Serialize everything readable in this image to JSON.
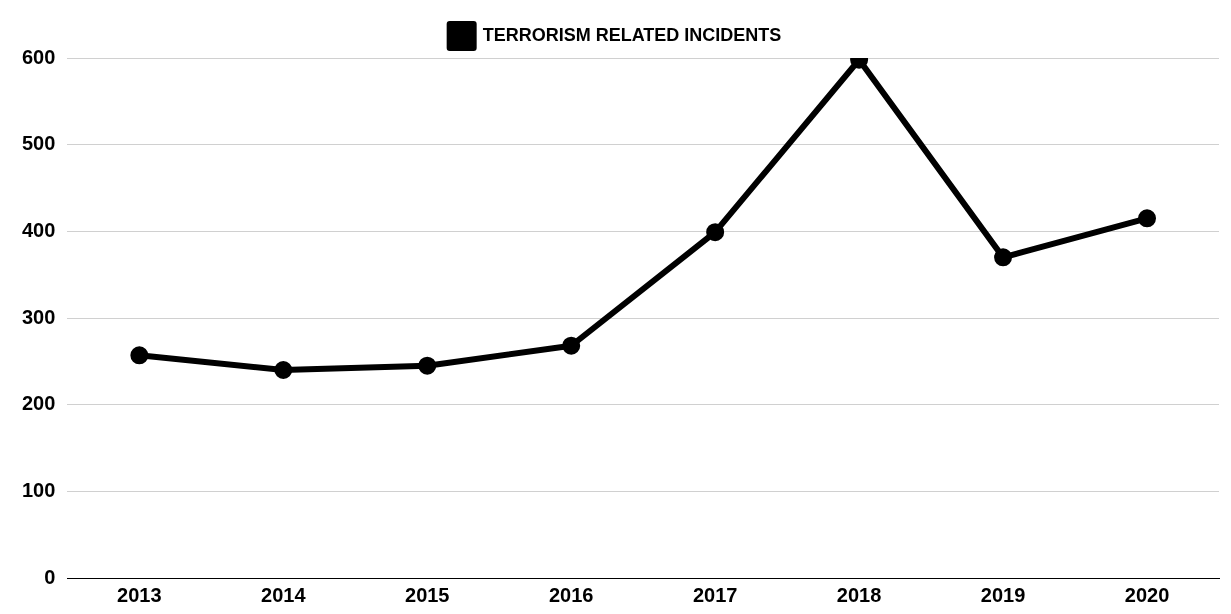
{
  "chart_data": {
    "type": "line",
    "categories": [
      "2013",
      "2014",
      "2015",
      "2016",
      "2017",
      "2018",
      "2019",
      "2020"
    ],
    "series": [
      {
        "name": "TERRORISM RELATED INCIDENTS",
        "color": "#000000",
        "values": [
          257,
          240,
          245,
          268,
          399,
          598,
          370,
          415
        ]
      }
    ],
    "ylim": [
      0,
      600
    ],
    "yticks": [
      0,
      100,
      200,
      300,
      400,
      500,
      600
    ],
    "grid": "y",
    "legend": "top",
    "marker": "circle",
    "line_style": "solid"
  }
}
